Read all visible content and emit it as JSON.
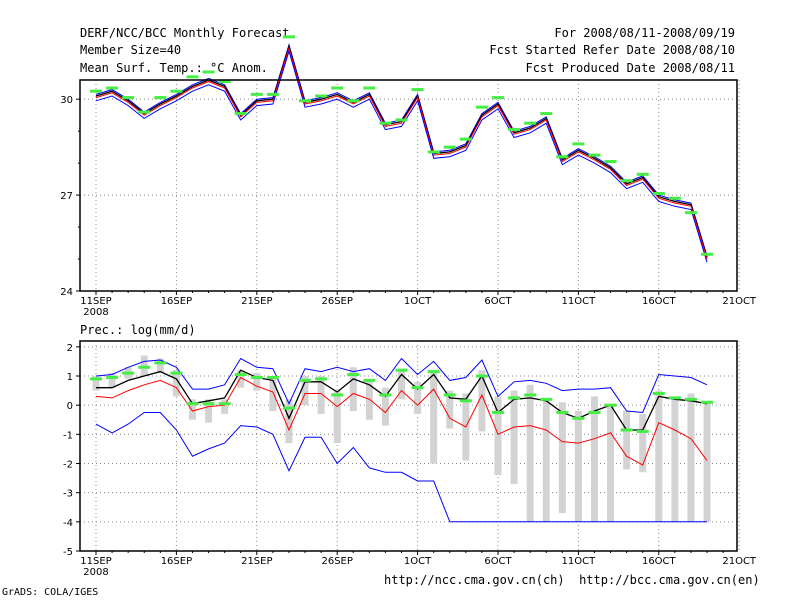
{
  "header": {
    "title": "DERF/NCC/BCC Monthly Forecast",
    "member_size": "Member Size=40",
    "variable": "Mean Surf. Temp.: °C Anom.",
    "period": "For 2008/08/11-2008/09/19",
    "start_date": "Fcst Started Refer Date 2008/08/10",
    "produced_date": "Fcst Produced Date 2008/08/11"
  },
  "footer": {
    "grads": "GrADS: COLA/IGES",
    "links": "http://ncc.cma.gov.cn(ch)  http://bcc.cma.gov.cn(en)"
  },
  "colors": {
    "ensemble_mean": "#000000",
    "upper_line": "#0000ff",
    "lower_line": "#ff0000",
    "marker": "#44ee44",
    "bar": "#d3d3d3",
    "grid": "#888888"
  },
  "chart_data": [
    {
      "type": "line",
      "title": "Mean Surf. Temp.: °C Anom.",
      "xlabel": "",
      "ylabel": "",
      "x_tick_labels": [
        "11SEP",
        "16SEP",
        "21SEP",
        "26SEP",
        "1OCT",
        "6OCT",
        "11OCT",
        "16OCT",
        "21OCT"
      ],
      "x_year_label": "2008",
      "y_ticks": [
        24,
        27,
        30
      ],
      "ylim": [
        24,
        30.6
      ],
      "grid": true,
      "days": [
        0,
        1,
        2,
        3,
        4,
        5,
        6,
        7,
        8,
        9,
        10,
        11,
        12,
        13,
        14,
        15,
        16,
        17,
        18,
        19,
        20,
        21,
        22,
        23,
        24,
        25,
        26,
        27,
        28,
        29,
        30,
        31,
        32,
        33,
        34,
        35,
        36,
        37,
        38
      ],
      "series": [
        {
          "name": "upper",
          "color": "#0000ff",
          "values": [
            30.15,
            30.3,
            30.0,
            29.6,
            29.9,
            30.15,
            30.45,
            30.65,
            30.45,
            29.55,
            30.0,
            30.05,
            31.7,
            29.95,
            30.05,
            30.2,
            29.95,
            30.2,
            29.25,
            29.35,
            30.15,
            28.35,
            28.4,
            28.6,
            29.55,
            29.9,
            29.0,
            29.15,
            29.45,
            28.15,
            28.45,
            28.2,
            27.9,
            27.4,
            27.6,
            27.0,
            26.85,
            26.75,
            25.1
          ]
        },
        {
          "name": "ensemble_mean",
          "color": "#000000",
          "values": [
            30.1,
            30.25,
            29.95,
            29.55,
            29.85,
            30.1,
            30.4,
            30.6,
            30.4,
            29.5,
            29.95,
            30.0,
            31.65,
            29.9,
            30.0,
            30.15,
            29.9,
            30.15,
            29.2,
            29.3,
            30.1,
            28.3,
            28.35,
            28.55,
            29.5,
            29.85,
            28.95,
            29.1,
            29.4,
            28.1,
            28.4,
            28.15,
            27.85,
            27.35,
            27.55,
            26.95,
            26.8,
            26.7,
            25.05
          ]
        },
        {
          "name": "lower",
          "color": "#ff0000",
          "values": [
            30.05,
            30.2,
            29.9,
            29.5,
            29.8,
            30.05,
            30.35,
            30.55,
            30.35,
            29.45,
            29.9,
            29.95,
            31.6,
            29.85,
            29.95,
            30.1,
            29.85,
            30.1,
            29.15,
            29.25,
            30.05,
            28.25,
            28.3,
            28.5,
            29.45,
            29.8,
            28.9,
            29.05,
            29.35,
            28.05,
            28.35,
            28.1,
            27.8,
            27.3,
            27.5,
            26.9,
            26.75,
            26.65,
            25.0
          ]
        },
        {
          "name": "lower_outer",
          "color": "#0000ff",
          "values": [
            29.95,
            30.1,
            29.8,
            29.4,
            29.7,
            29.95,
            30.25,
            30.45,
            30.25,
            29.35,
            29.8,
            29.85,
            31.5,
            29.75,
            29.85,
            30.0,
            29.75,
            30.0,
            29.05,
            29.15,
            29.95,
            28.15,
            28.2,
            28.4,
            29.35,
            29.7,
            28.8,
            28.95,
            29.25,
            27.95,
            28.25,
            28.0,
            27.7,
            27.2,
            27.4,
            26.8,
            26.65,
            26.55,
            24.9
          ]
        }
      ],
      "markers": {
        "name": "observed",
        "color": "#44ee44",
        "values": [
          30.25,
          30.35,
          30.05,
          29.6,
          30.05,
          30.25,
          30.7,
          30.85,
          30.55,
          29.55,
          30.15,
          30.15,
          31.95,
          29.95,
          30.1,
          30.35,
          29.95,
          30.35,
          29.25,
          29.35,
          30.3,
          28.35,
          28.5,
          28.75,
          29.75,
          30.05,
          29.05,
          29.25,
          29.55,
          28.2,
          28.6,
          28.25,
          28.05,
          27.45,
          27.65,
          27.05,
          26.9,
          26.45,
          25.15
        ]
      }
    },
    {
      "type": "line",
      "title": "Prec.: log(mm/d)",
      "xlabel": "",
      "ylabel": "",
      "x_tick_labels": [
        "11SEP",
        "16SEP",
        "21SEP",
        "26SEP",
        "1OCT",
        "6OCT",
        "11OCT",
        "16OCT",
        "21OCT"
      ],
      "x_year_label": "2008",
      "y_ticks": [
        -5,
        -4,
        -3,
        -2,
        -1,
        0,
        1,
        2
      ],
      "ylim": [
        -5,
        2.2
      ],
      "grid": true,
      "days": [
        0,
        1,
        2,
        3,
        4,
        5,
        6,
        7,
        8,
        9,
        10,
        11,
        12,
        13,
        14,
        15,
        16,
        17,
        18,
        19,
        20,
        21,
        22,
        23,
        24,
        25,
        26,
        27,
        28,
        29,
        30,
        31,
        32,
        33,
        34,
        35,
        36,
        37,
        38
      ],
      "bars": {
        "name": "spread",
        "color": "#d3d3d3",
        "low": [
          0.5,
          0.6,
          0.9,
          1.0,
          1.1,
          0.3,
          -0.5,
          -0.6,
          -0.3,
          0.6,
          0.5,
          -0.2,
          -1.3,
          0.0,
          -0.3,
          -1.3,
          -0.2,
          -0.5,
          -0.7,
          0.2,
          -0.3,
          -2.0,
          -0.8,
          -1.9,
          -0.9,
          -2.4,
          -2.7,
          -4.0,
          -4.0,
          -3.7,
          -4.0,
          -4.0,
          -4.0,
          -2.2,
          -2.3,
          -4.0,
          -4.0,
          -4.0,
          -4.0
        ],
        "high": [
          1.0,
          1.1,
          1.3,
          1.7,
          1.6,
          1.2,
          0.2,
          0.2,
          0.2,
          1.2,
          1.1,
          1.0,
          0.2,
          1.0,
          1.0,
          0.5,
          1.3,
          0.9,
          0.6,
          1.2,
          0.8,
          1.2,
          0.5,
          0.4,
          1.2,
          0.3,
          0.5,
          0.7,
          0.2,
          0.1,
          -0.2,
          0.3,
          0.0,
          -0.2,
          -0.3,
          0.5,
          0.2,
          0.4,
          0.1
        ]
      },
      "series": [
        {
          "name": "upper",
          "color": "#0000ff",
          "values": [
            1.0,
            1.05,
            1.3,
            1.5,
            1.55,
            1.3,
            0.55,
            0.55,
            0.7,
            1.6,
            1.3,
            1.25,
            0.05,
            1.25,
            1.15,
            1.3,
            1.15,
            1.25,
            0.85,
            1.6,
            1.05,
            1.5,
            0.85,
            0.95,
            1.55,
            0.3,
            0.8,
            0.85,
            0.75,
            0.5,
            0.55,
            0.55,
            0.6,
            -0.2,
            -0.25,
            1.05,
            1.0,
            0.95,
            0.7
          ]
        },
        {
          "name": "ensemble_mean",
          "color": "#000000",
          "values": [
            0.6,
            0.6,
            0.85,
            1.0,
            1.15,
            0.9,
            0.05,
            0.15,
            0.25,
            1.2,
            0.95,
            0.85,
            -0.45,
            0.8,
            0.8,
            0.45,
            0.9,
            0.7,
            0.3,
            1.05,
            0.55,
            1.05,
            0.25,
            0.2,
            1.0,
            -0.25,
            0.2,
            0.25,
            0.15,
            -0.25,
            -0.45,
            -0.2,
            0.0,
            -0.85,
            -0.85,
            0.3,
            0.2,
            0.15,
            0.05
          ]
        },
        {
          "name": "lower",
          "color": "#ff0000",
          "values": [
            0.3,
            0.25,
            0.5,
            0.7,
            0.85,
            0.6,
            -0.2,
            -0.05,
            0.0,
            0.95,
            0.65,
            0.45,
            -0.85,
            0.4,
            0.4,
            -0.05,
            0.4,
            0.2,
            -0.25,
            0.5,
            0.0,
            0.55,
            -0.45,
            -0.75,
            0.35,
            -1.0,
            -0.75,
            -0.7,
            -0.85,
            -1.25,
            -1.3,
            -1.15,
            -0.95,
            -1.75,
            -2.05,
            -0.6,
            -0.85,
            -1.15,
            -1.9
          ]
        },
        {
          "name": "lower_outer",
          "color": "#0000ff",
          "values": [
            -0.65,
            -0.95,
            -0.65,
            -0.25,
            -0.25,
            -0.85,
            -1.75,
            -1.5,
            -1.3,
            -0.7,
            -0.75,
            -1.0,
            -2.25,
            -1.1,
            -1.1,
            -2.0,
            -1.45,
            -2.15,
            -2.3,
            -2.3,
            -2.6,
            -2.6,
            -4.0,
            -4.0,
            -4.0,
            -4.0,
            -4.0,
            -4.0,
            -4.0,
            -4.0,
            -4.0,
            -4.0,
            -4.0,
            -4.0,
            -4.0,
            -4.0,
            -4.0,
            -4.0,
            -4.0
          ]
        }
      ],
      "markers": {
        "name": "observed",
        "color": "#44ee44",
        "values": [
          0.9,
          0.95,
          1.1,
          1.3,
          1.45,
          1.1,
          0.05,
          0.05,
          0.05,
          1.05,
          0.95,
          0.95,
          -0.1,
          0.85,
          0.9,
          0.35,
          1.05,
          0.85,
          0.35,
          1.2,
          0.6,
          1.15,
          0.35,
          0.15,
          1.0,
          -0.25,
          0.25,
          0.35,
          0.2,
          -0.25,
          -0.45,
          -0.25,
          0.0,
          -0.85,
          -0.9,
          0.4,
          0.25,
          0.2,
          0.1
        ]
      }
    }
  ]
}
